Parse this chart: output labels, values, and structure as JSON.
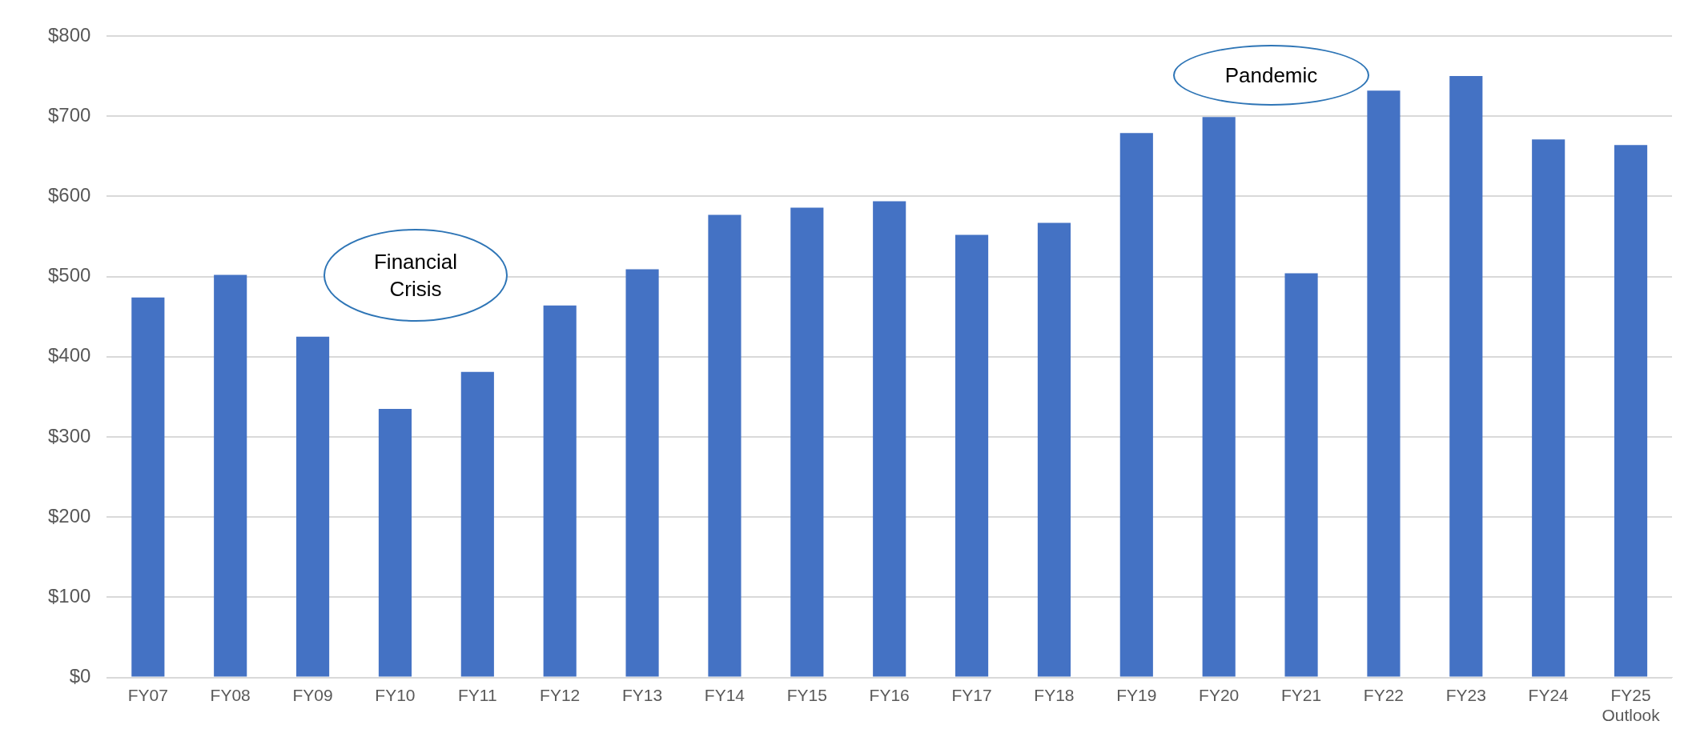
{
  "chart_data": {
    "type": "bar",
    "categories": [
      "FY07",
      "FY08",
      "FY09",
      "FY10",
      "FY11",
      "FY12",
      "FY13",
      "FY14",
      "FY15",
      "FY16",
      "FY17",
      "FY18",
      "FY19",
      "FY20",
      "FY21",
      "FY22",
      "FY23",
      "FY24",
      "FY25 Outlook"
    ],
    "values": [
      474,
      502,
      425,
      335,
      381,
      464,
      509,
      577,
      586,
      594,
      552,
      567,
      679,
      699,
      504,
      732,
      750,
      671,
      664
    ],
    "color": "#4472c4",
    "ylim": [
      0,
      800
    ],
    "yticks": [
      {
        "value": 0,
        "label": "$0"
      },
      {
        "value": 100,
        "label": "$100"
      },
      {
        "value": 200,
        "label": "$200"
      },
      {
        "value": 300,
        "label": "$300"
      },
      {
        "value": 400,
        "label": "$400"
      },
      {
        "value": 500,
        "label": "$500"
      },
      {
        "value": 600,
        "label": "$600"
      },
      {
        "value": 700,
        "label": "$700"
      },
      {
        "value": 800,
        "label": "$800"
      }
    ],
    "grid": "y",
    "annotations": [
      "Financial Crisis",
      "Pandemic"
    ]
  }
}
